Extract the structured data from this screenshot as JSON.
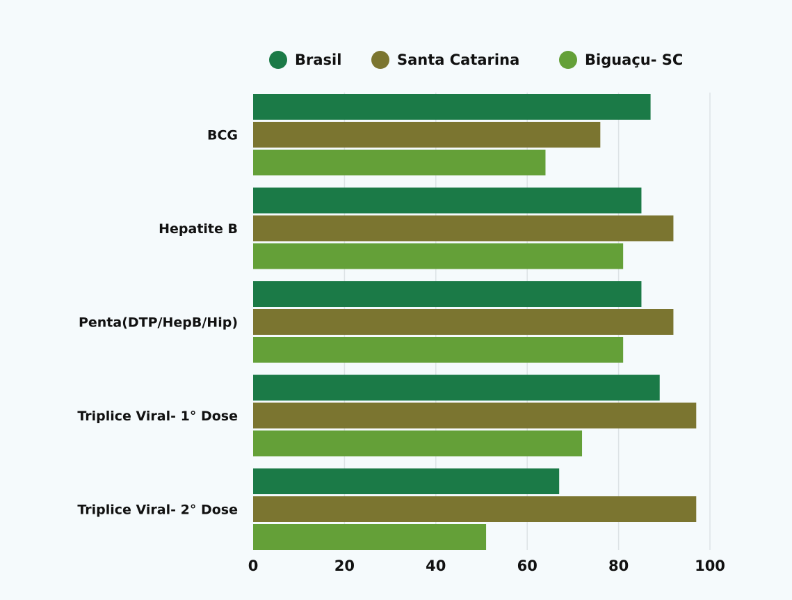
{
  "chart_data": {
    "type": "bar",
    "orientation": "horizontal",
    "categories": [
      "BCG",
      "Hepatite B",
      "Penta(DTP/HepB/Hip)",
      "Triplice Viral- 1° Dose",
      "Triplice Viral- 2° Dose"
    ],
    "series": [
      {
        "name": "Brasil",
        "color": "#1b7a47",
        "values": [
          87,
          85,
          85,
          89,
          67
        ]
      },
      {
        "name": "Santa Catarina",
        "color": "#7b7530",
        "values": [
          76,
          92,
          92,
          97,
          97
        ]
      },
      {
        "name": "Biguaçu- SC",
        "color": "#64a038",
        "values": [
          64,
          81,
          81,
          72,
          51
        ]
      }
    ],
    "xlim": [
      0,
      100
    ],
    "xticks": [
      0,
      20,
      40,
      60,
      80,
      100
    ],
    "grid": true,
    "legend_position": "top",
    "title": "",
    "xlabel": "",
    "ylabel": ""
  }
}
